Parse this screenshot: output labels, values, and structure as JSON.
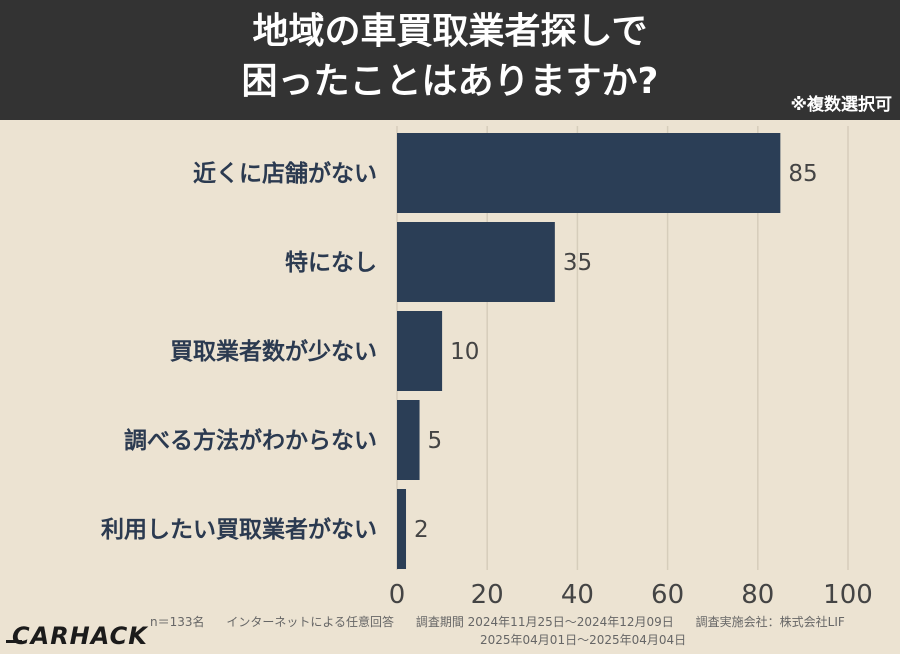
{
  "header": {
    "title_line1": "地域の車買取業者探しで",
    "title_line2": "困ったことはありますか?",
    "note": "※複数選択可"
  },
  "chart_data": {
    "type": "bar",
    "orientation": "horizontal",
    "categories": [
      "近くに店舗がない",
      "特になし",
      "買取業者数が少ない",
      "調べる方法がわからない",
      "利用したい買取業者がない"
    ],
    "values": [
      85,
      35,
      10,
      5,
      2
    ],
    "xlim": [
      0,
      100
    ],
    "xticks": [
      0,
      20,
      40,
      60,
      80,
      100
    ],
    "grid": true,
    "bar_color": "#2b3e56",
    "title": "地域の車買取業者探しで困ったことはありますか?"
  },
  "footer": {
    "logo": "CARHACK",
    "sample": "n＝133名",
    "method": "インターネットによる任意回答",
    "period": "調査期間 2024年11月25日～2024年12月09日",
    "company": "調査実施会社：株式会社LIF",
    "period2": "2025年04月01日～2025年04月04日"
  }
}
